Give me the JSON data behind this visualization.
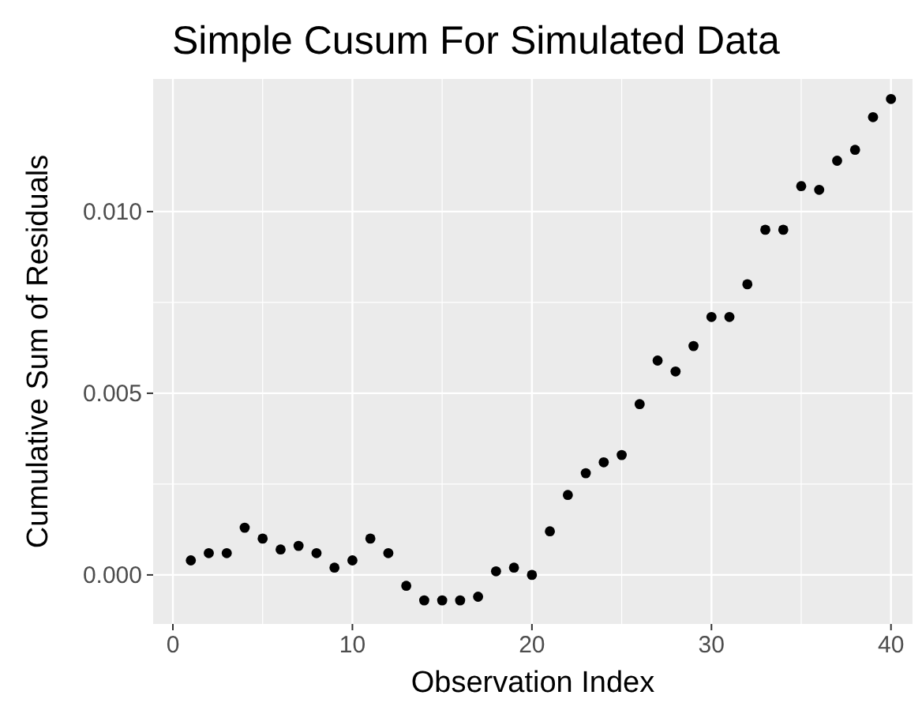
{
  "chart_data": {
    "type": "scatter",
    "title": "Simple Cusum For Simulated Data",
    "xlabel": "Observation Index",
    "ylabel": "Cumulative Sum of Residuals",
    "x": [
      1,
      2,
      3,
      4,
      5,
      6,
      7,
      8,
      9,
      10,
      11,
      12,
      13,
      14,
      15,
      16,
      17,
      18,
      19,
      20,
      21,
      22,
      23,
      24,
      25,
      26,
      27,
      28,
      29,
      30,
      31,
      32,
      33,
      34,
      35,
      36,
      37,
      38,
      39,
      40
    ],
    "series": [
      {
        "color": "#000000",
        "values": [
          0.0004,
          0.0006,
          0.0006,
          0.0013,
          0.001,
          0.0007,
          0.0008,
          0.0006,
          0.0002,
          0.0004,
          0.001,
          0.0006,
          -0.0003,
          -0.0007,
          -0.0007,
          -0.0007,
          -0.0006,
          0.0001,
          0.0002,
          0,
          0.0012,
          0.0022,
          0.0028,
          0.0031,
          0.0033,
          0.0047,
          0.0059,
          0.0056,
          0.0063,
          0.0071,
          0.0071,
          0.008,
          0.0095,
          0.0095,
          0.0107,
          0.0106,
          0.0114,
          0.0117,
          0.0126,
          0.0131
        ]
      }
    ],
    "xlim": [
      -1.1,
      41.2
    ],
    "ylim": [
      -0.00135,
      0.01365
    ],
    "xticks": [
      0,
      10,
      20,
      30,
      40
    ],
    "yticks": [
      {
        "value": 0,
        "label": "0.000"
      },
      {
        "value": 0.005,
        "label": "0.005"
      },
      {
        "value": 0.01,
        "label": "0.010"
      }
    ],
    "grid": true,
    "marker": "circle"
  }
}
